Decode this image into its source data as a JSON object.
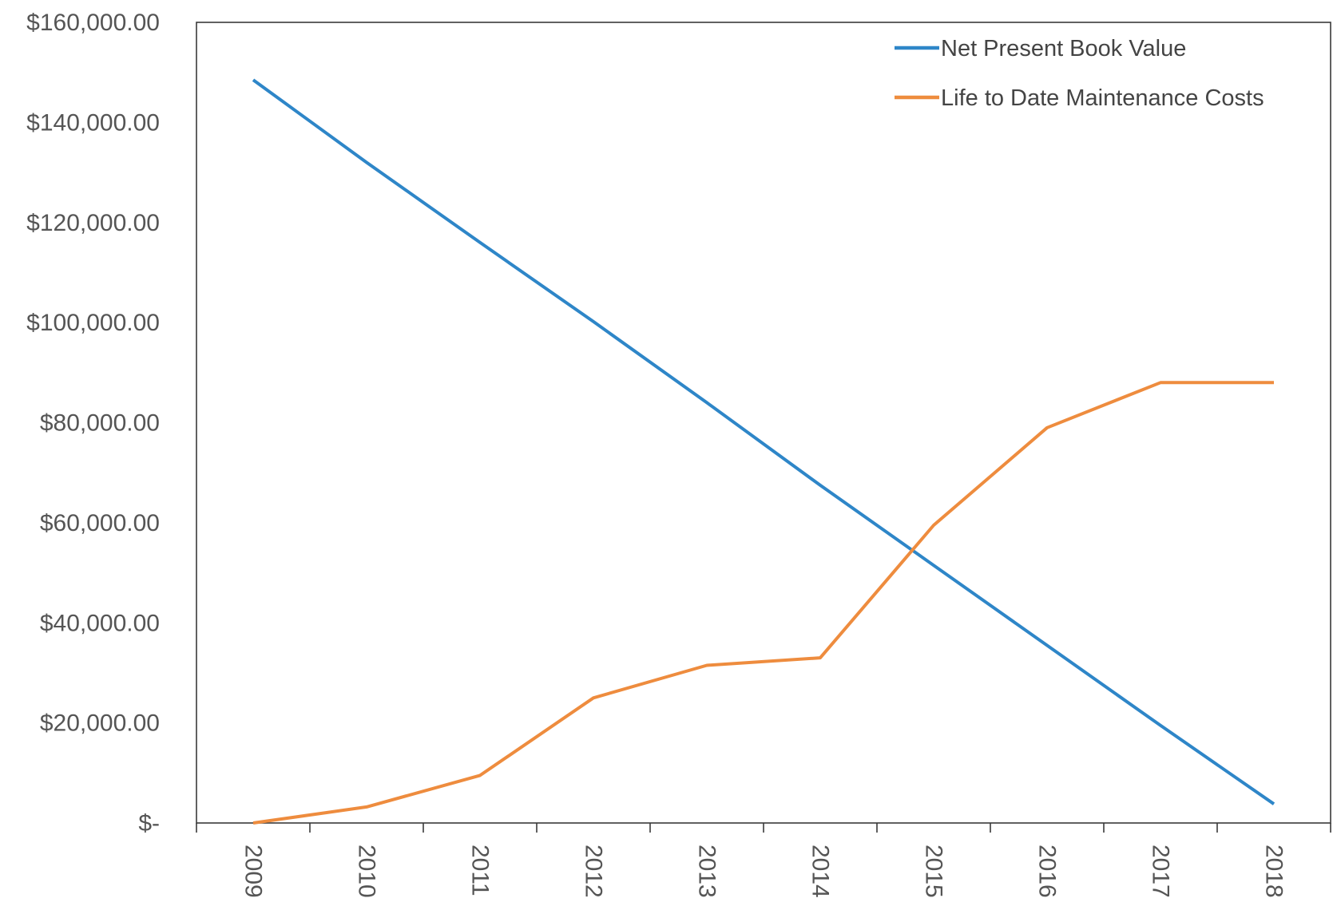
{
  "chart_data": {
    "type": "line",
    "categories": [
      "2009",
      "2010",
      "2011",
      "2012",
      "2013",
      "2014",
      "2015",
      "2016",
      "2017",
      "2018"
    ],
    "series": [
      {
        "name": "Net Present Book Value",
        "color": "#2E86C8",
        "values": [
          148500,
          132000,
          116000,
          100200,
          84000,
          67500,
          51500,
          35500,
          19500,
          3800
        ]
      },
      {
        "name": "Life to Date Maintenance Costs",
        "color": "#EE8C3E",
        "values": [
          0,
          3200,
          9500,
          25000,
          31500,
          33000,
          59500,
          79000,
          88000,
          88000
        ]
      }
    ],
    "yticks": [
      0,
      20000,
      40000,
      60000,
      80000,
      100000,
      120000,
      140000,
      160000
    ],
    "ytick_labels": [
      "$-",
      "$20,000.00",
      "$40,000.00",
      "$60,000.00",
      "$80,000.00",
      "$100,000.00",
      "$120,000.00",
      "$140,000.00",
      "$160,000.00"
    ],
    "ylim": [
      0,
      160000
    ],
    "grid": false,
    "legend_position": "top-right",
    "x_tick_rotation": "vertical"
  }
}
